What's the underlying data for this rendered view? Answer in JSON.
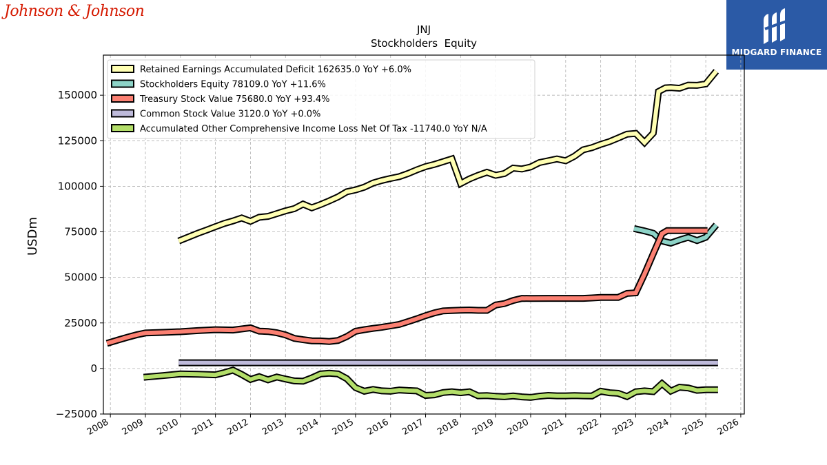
{
  "brand": {
    "left_logo": "Johnson & Johnson",
    "right_logo": "MIDGARD FINANCE"
  },
  "chart_data": {
    "type": "line",
    "title": "JNJ",
    "subtitle": "Stockholders  Equity",
    "ylabel": "USDm",
    "xlabel": "",
    "xlim": [
      2007.8,
      2026.1
    ],
    "ylim": [
      -25000,
      172000
    ],
    "x_ticks": [
      2008,
      2009,
      2010,
      2011,
      2012,
      2013,
      2014,
      2015,
      2016,
      2017,
      2018,
      2019,
      2020,
      2021,
      2022,
      2023,
      2024,
      2025,
      2026
    ],
    "y_ticks": [
      -25000,
      0,
      25000,
      50000,
      75000,
      100000,
      125000,
      150000
    ],
    "y_tick_labels": [
      "−25000",
      "0",
      "25000",
      "50000",
      "75000",
      "100000",
      "125000",
      "150000"
    ],
    "grid": true,
    "legend_position": "top-left",
    "series": [
      {
        "name": "Retained Earnings Accumulated Deficit  162635.0 YoY +6.0%",
        "color": "#ffffb3",
        "points": [
          [
            2009.95,
            70000
          ],
          [
            2010.25,
            72300
          ],
          [
            2010.5,
            74200
          ],
          [
            2010.75,
            76000
          ],
          [
            2011.0,
            77800
          ],
          [
            2011.25,
            79600
          ],
          [
            2011.5,
            81000
          ],
          [
            2011.75,
            82600
          ],
          [
            2012.0,
            80800
          ],
          [
            2012.25,
            83000
          ],
          [
            2012.5,
            83500
          ],
          [
            2012.75,
            85000
          ],
          [
            2013.0,
            86500
          ],
          [
            2013.25,
            87700
          ],
          [
            2013.5,
            90200
          ],
          [
            2013.75,
            88200
          ],
          [
            2014.0,
            90000
          ],
          [
            2014.25,
            92000
          ],
          [
            2014.5,
            94200
          ],
          [
            2014.75,
            97000
          ],
          [
            2015.0,
            98000
          ],
          [
            2015.25,
            99500
          ],
          [
            2015.5,
            101800
          ],
          [
            2015.75,
            103200
          ],
          [
            2016.0,
            104300
          ],
          [
            2016.25,
            105300
          ],
          [
            2016.5,
            107000
          ],
          [
            2016.75,
            109000
          ],
          [
            2017.0,
            110800
          ],
          [
            2017.25,
            112000
          ],
          [
            2017.5,
            113500
          ],
          [
            2017.75,
            115000
          ],
          [
            2018.0,
            101500
          ],
          [
            2018.25,
            104000
          ],
          [
            2018.5,
            106000
          ],
          [
            2018.75,
            107700
          ],
          [
            2019.0,
            106000
          ],
          [
            2019.25,
            107000
          ],
          [
            2019.5,
            110000
          ],
          [
            2019.75,
            109500
          ],
          [
            2020.0,
            110600
          ],
          [
            2020.25,
            113000
          ],
          [
            2020.5,
            114000
          ],
          [
            2020.75,
            115000
          ],
          [
            2021.0,
            114000
          ],
          [
            2021.25,
            116500
          ],
          [
            2021.5,
            120000
          ],
          [
            2021.75,
            121200
          ],
          [
            2022.0,
            123000
          ],
          [
            2022.25,
            124500
          ],
          [
            2022.5,
            126500
          ],
          [
            2022.75,
            128600
          ],
          [
            2023.0,
            129000
          ],
          [
            2023.25,
            124000
          ],
          [
            2023.5,
            129200
          ],
          [
            2023.65,
            152000
          ],
          [
            2023.85,
            154000
          ],
          [
            2024.0,
            154200
          ],
          [
            2024.25,
            153800
          ],
          [
            2024.5,
            155500
          ],
          [
            2024.75,
            155400
          ],
          [
            2025.0,
            156200
          ],
          [
            2025.3,
            163200
          ]
        ]
      },
      {
        "name": "Stockholders Equity  78109.0 YoY +11.6%",
        "color": "#8dd3c7",
        "points": [
          [
            2022.95,
            76800
          ],
          [
            2023.25,
            75500
          ],
          [
            2023.5,
            74200
          ],
          [
            2023.75,
            70000
          ],
          [
            2024.0,
            68800
          ],
          [
            2024.25,
            70500
          ],
          [
            2024.5,
            72000
          ],
          [
            2024.75,
            70200
          ],
          [
            2025.0,
            72000
          ],
          [
            2025.3,
            78800
          ]
        ]
      },
      {
        "name": "Treasury Stock Value  75680.0 YoY +93.4%",
        "color": "#fb8072",
        "points": [
          [
            2007.9,
            13800
          ],
          [
            2008.25,
            15800
          ],
          [
            2008.5,
            17200
          ],
          [
            2008.75,
            18500
          ],
          [
            2009.0,
            19500
          ],
          [
            2009.5,
            19800
          ],
          [
            2010.0,
            20200
          ],
          [
            2010.5,
            20800
          ],
          [
            2011.0,
            21300
          ],
          [
            2011.5,
            21100
          ],
          [
            2012.0,
            22300
          ],
          [
            2012.25,
            20500
          ],
          [
            2012.5,
            20300
          ],
          [
            2012.75,
            19600
          ],
          [
            2013.0,
            18400
          ],
          [
            2013.25,
            16500
          ],
          [
            2013.5,
            15800
          ],
          [
            2013.75,
            15200
          ],
          [
            2014.0,
            15100
          ],
          [
            2014.25,
            14800
          ],
          [
            2014.5,
            15400
          ],
          [
            2014.75,
            17500
          ],
          [
            2015.0,
            20400
          ],
          [
            2015.25,
            21300
          ],
          [
            2015.5,
            22000
          ],
          [
            2015.75,
            22600
          ],
          [
            2016.0,
            23400
          ],
          [
            2016.25,
            24200
          ],
          [
            2016.5,
            25700
          ],
          [
            2016.75,
            27300
          ],
          [
            2017.0,
            29000
          ],
          [
            2017.25,
            30500
          ],
          [
            2017.5,
            31600
          ],
          [
            2017.75,
            31800
          ],
          [
            2018.0,
            32000
          ],
          [
            2018.25,
            32100
          ],
          [
            2018.5,
            31900
          ],
          [
            2018.75,
            31900
          ],
          [
            2019.0,
            34800
          ],
          [
            2019.25,
            35600
          ],
          [
            2019.5,
            37300
          ],
          [
            2019.75,
            38500
          ],
          [
            2020.0,
            38400
          ],
          [
            2020.5,
            38500
          ],
          [
            2021.0,
            38500
          ],
          [
            2021.5,
            38500
          ],
          [
            2021.75,
            38700
          ],
          [
            2022.0,
            39000
          ],
          [
            2022.5,
            39000
          ],
          [
            2022.75,
            41200
          ],
          [
            2023.0,
            41500
          ],
          [
            2023.25,
            51800
          ],
          [
            2023.5,
            63000
          ],
          [
            2023.75,
            74000
          ],
          [
            2023.9,
            75700
          ],
          [
            2024.25,
            75700
          ],
          [
            2024.75,
            75700
          ],
          [
            2025.05,
            75700
          ]
        ]
      },
      {
        "name": "Common Stock Value  3120.0 YoY +0.0%",
        "color": "#bebada",
        "points": [
          [
            2009.95,
            3120
          ],
          [
            2025.35,
            3120
          ]
        ]
      },
      {
        "name": "Accumulated Other Comprehensive Income Loss Net Of Tax  -11740.0 YoY N/A",
        "color": "#b3de69",
        "points": [
          [
            2008.95,
            -4800
          ],
          [
            2009.5,
            -3900
          ],
          [
            2010.0,
            -3000
          ],
          [
            2010.5,
            -3200
          ],
          [
            2011.0,
            -3500
          ],
          [
            2011.25,
            -2300
          ],
          [
            2011.5,
            -900
          ],
          [
            2011.75,
            -3300
          ],
          [
            2012.0,
            -6000
          ],
          [
            2012.25,
            -4500
          ],
          [
            2012.5,
            -6200
          ],
          [
            2012.75,
            -4700
          ],
          [
            2013.0,
            -5800
          ],
          [
            2013.25,
            -6800
          ],
          [
            2013.5,
            -7000
          ],
          [
            2013.75,
            -5200
          ],
          [
            2014.0,
            -3000
          ],
          [
            2014.25,
            -2600
          ],
          [
            2014.5,
            -3000
          ],
          [
            2014.75,
            -5600
          ],
          [
            2015.0,
            -10500
          ],
          [
            2015.25,
            -12500
          ],
          [
            2015.5,
            -11500
          ],
          [
            2015.75,
            -12300
          ],
          [
            2016.0,
            -12500
          ],
          [
            2016.25,
            -11800
          ],
          [
            2016.5,
            -12100
          ],
          [
            2016.75,
            -12300
          ],
          [
            2017.0,
            -14800
          ],
          [
            2017.25,
            -14500
          ],
          [
            2017.5,
            -13200
          ],
          [
            2017.75,
            -12800
          ],
          [
            2018.0,
            -13300
          ],
          [
            2018.25,
            -12800
          ],
          [
            2018.5,
            -15000
          ],
          [
            2018.75,
            -14900
          ],
          [
            2019.0,
            -15300
          ],
          [
            2019.25,
            -15500
          ],
          [
            2019.5,
            -15100
          ],
          [
            2019.75,
            -15600
          ],
          [
            2020.0,
            -15900
          ],
          [
            2020.25,
            -15200
          ],
          [
            2020.5,
            -14800
          ],
          [
            2020.75,
            -15000
          ],
          [
            2021.0,
            -15000
          ],
          [
            2021.25,
            -14900
          ],
          [
            2021.5,
            -15000
          ],
          [
            2021.75,
            -15100
          ],
          [
            2022.0,
            -12500
          ],
          [
            2022.25,
            -13300
          ],
          [
            2022.5,
            -13600
          ],
          [
            2022.75,
            -15400
          ],
          [
            2023.0,
            -12800
          ],
          [
            2023.25,
            -12300
          ],
          [
            2023.5,
            -12700
          ],
          [
            2023.75,
            -8300
          ],
          [
            2024.0,
            -12400
          ],
          [
            2024.25,
            -10300
          ],
          [
            2024.5,
            -10700
          ],
          [
            2024.75,
            -12000
          ],
          [
            2025.0,
            -11700
          ],
          [
            2025.35,
            -11700
          ]
        ]
      }
    ]
  }
}
